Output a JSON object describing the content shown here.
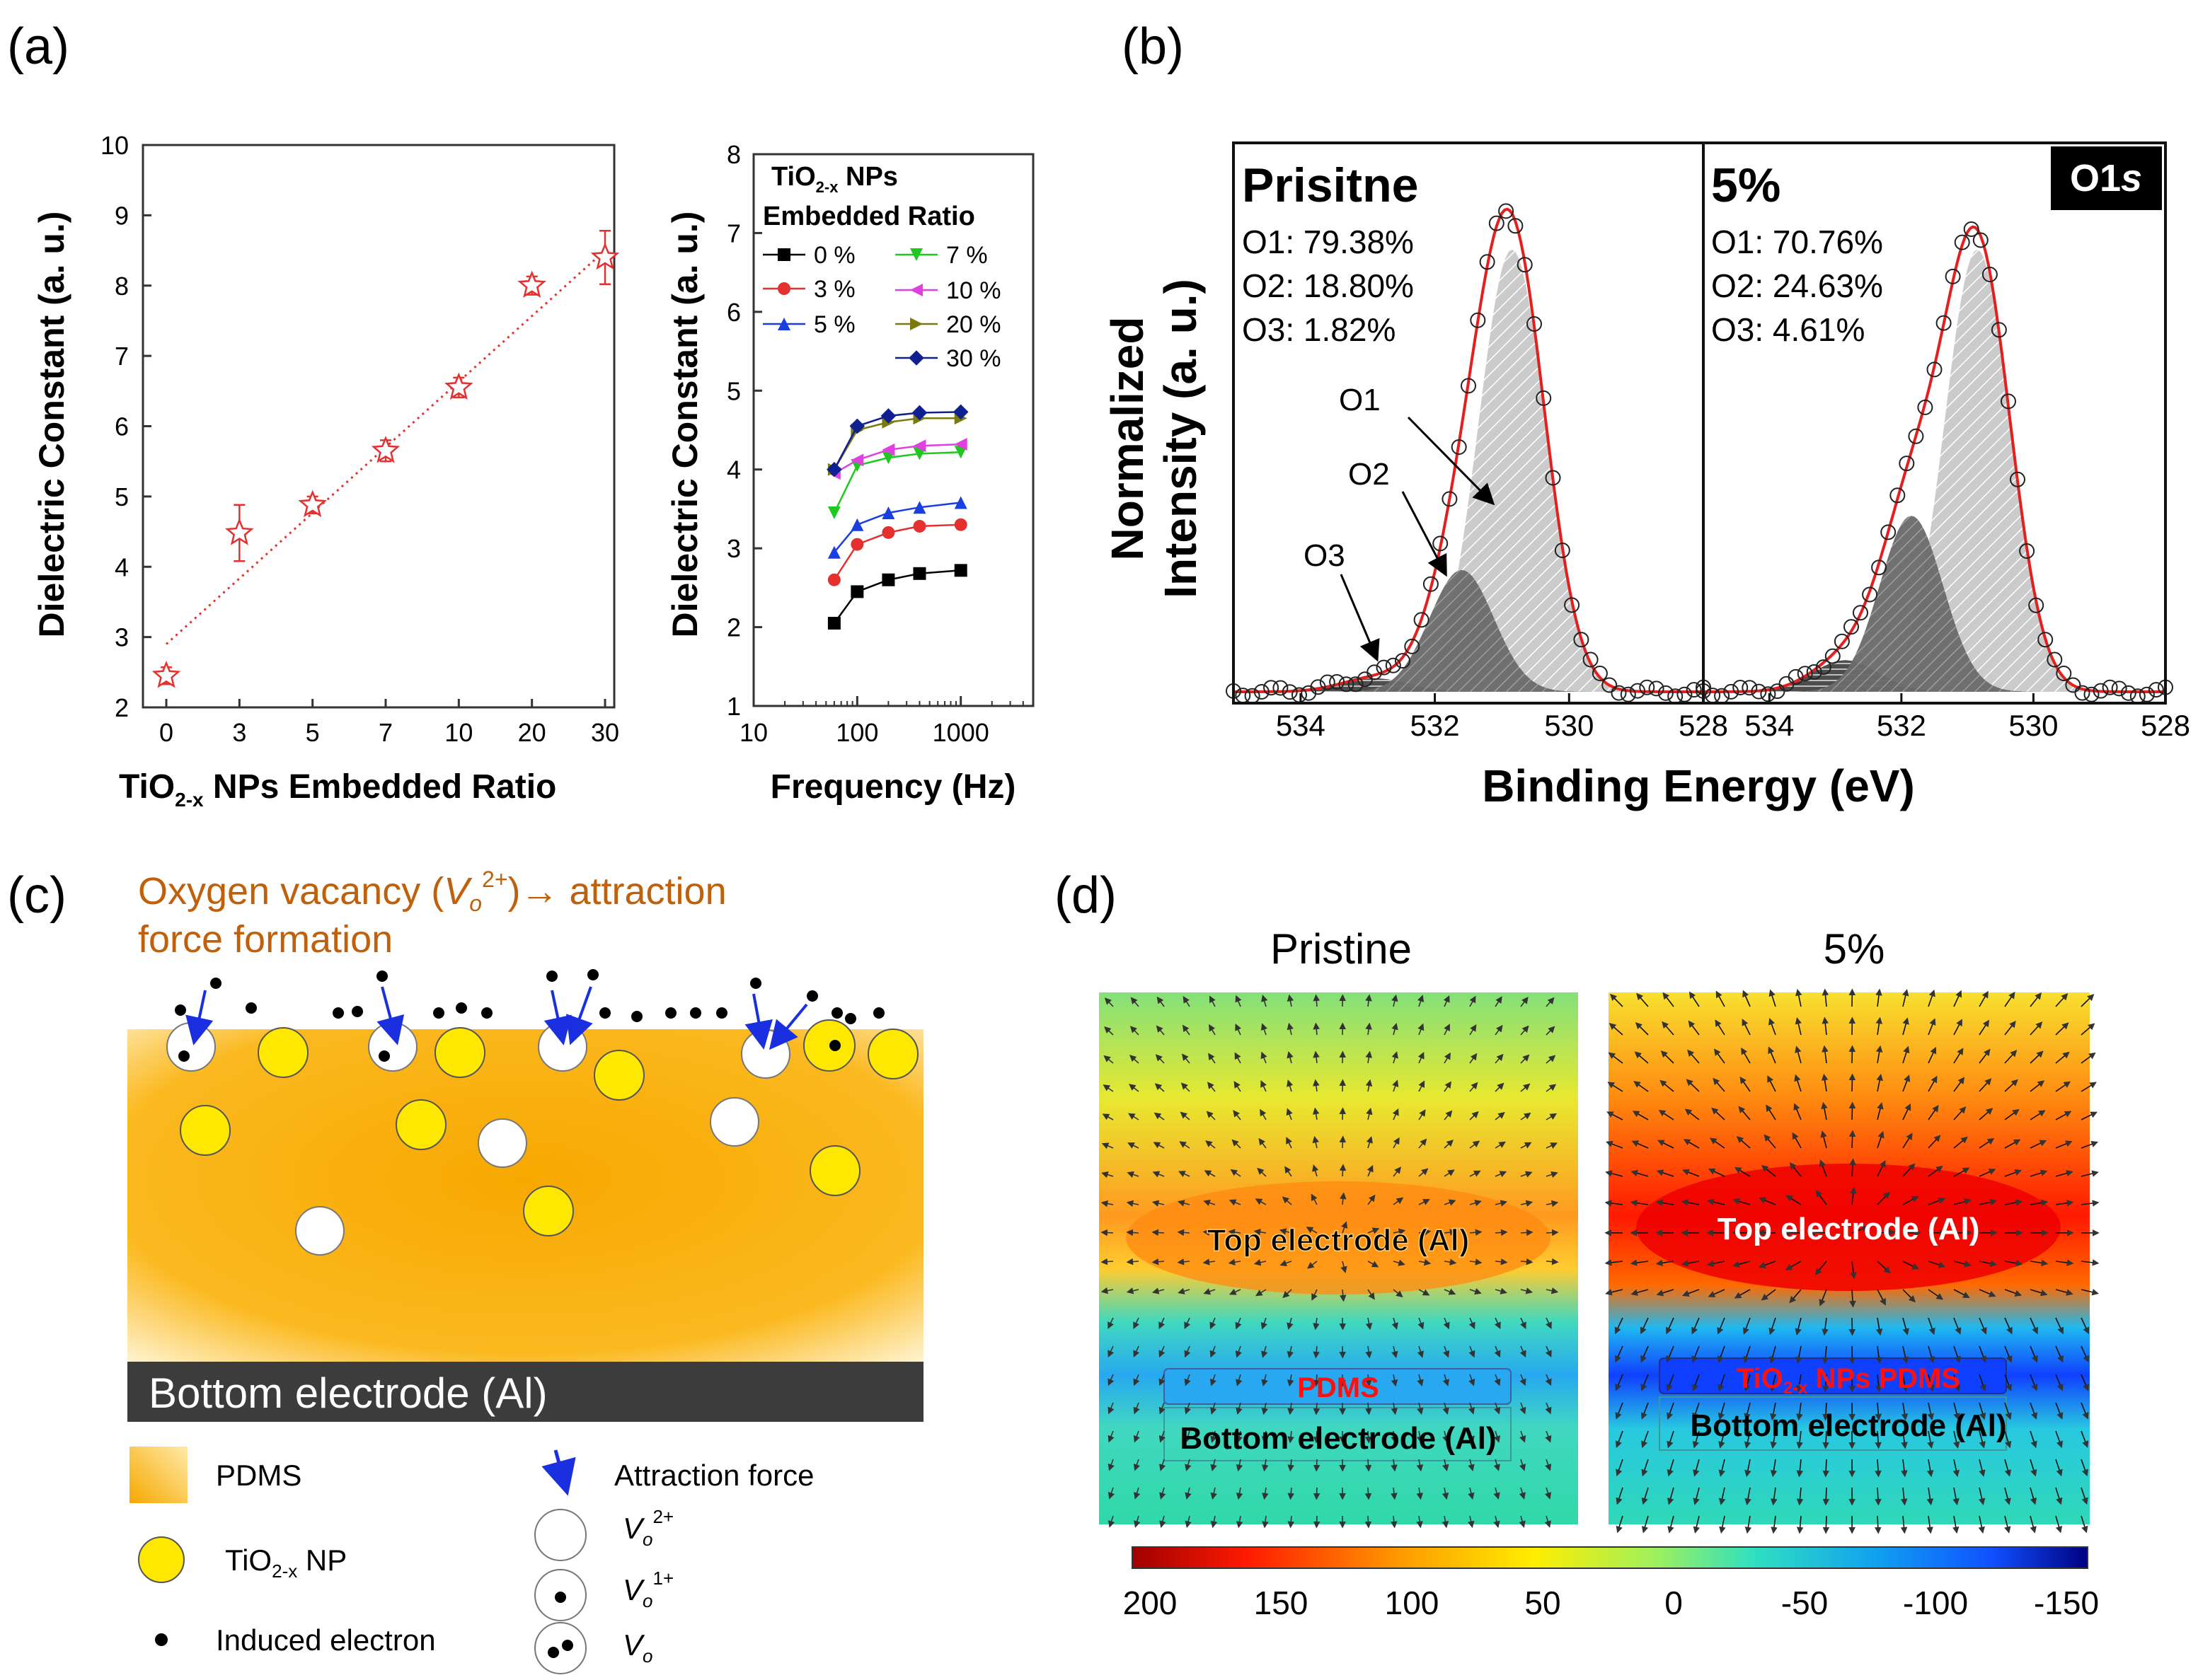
{
  "panels": {
    "a": "(a)",
    "b": "(b)",
    "c": "(c)",
    "d": "(d)"
  },
  "chart_data": [
    {
      "id": "a-left",
      "type": "scatter",
      "title": "",
      "xlabel": "TiO2-x NPs Embedded Ratio",
      "ylabel": "Dielectric Constant (a. u.)",
      "categories": [
        "0",
        "3",
        "5",
        "7",
        "10",
        "20",
        "30"
      ],
      "values": [
        2.45,
        4.48,
        4.88,
        5.65,
        6.55,
        8.0,
        8.4
      ],
      "errors": [
        0.12,
        0.4,
        0.12,
        0.15,
        0.14,
        0.13,
        0.38
      ],
      "ylim": [
        2,
        10
      ],
      "yticks": [
        "2",
        "3",
        "4",
        "5",
        "6",
        "7",
        "8",
        "9",
        "10"
      ],
      "fit": {
        "start": 2.9,
        "end": 8.5
      },
      "color": "#e53030"
    },
    {
      "id": "a-right",
      "type": "line",
      "xlabel": "Frequency (Hz)",
      "ylabel": "Dielectric Constant (a. u.)",
      "xscale": "log",
      "xlim": [
        10,
        5000
      ],
      "ylim": [
        1,
        8
      ],
      "xticks": [
        "10",
        "100",
        "1000"
      ],
      "yticks": [
        "1",
        "2",
        "3",
        "4",
        "5",
        "6",
        "7",
        "8"
      ],
      "x": [
        60,
        100,
        200,
        400,
        1000
      ],
      "legend_title_1": "TiO",
      "legend_title_sub": "2-x",
      "legend_title_2": " NPs",
      "legend_title_3": "Embedded Ratio",
      "series": [
        {
          "name": "0 %",
          "color": "#000000",
          "marker": "square",
          "values": [
            2.05,
            2.45,
            2.6,
            2.68,
            2.72
          ]
        },
        {
          "name": "3 %",
          "color": "#e53030",
          "marker": "circle",
          "values": [
            2.6,
            3.05,
            3.2,
            3.28,
            3.3
          ]
        },
        {
          "name": "5 %",
          "color": "#1a3fe0",
          "marker": "triangle-up",
          "values": [
            2.95,
            3.3,
            3.45,
            3.52,
            3.58
          ]
        },
        {
          "name": "7 %",
          "color": "#1ec81e",
          "marker": "triangle-down",
          "values": [
            3.45,
            4.05,
            4.15,
            4.2,
            4.22
          ]
        },
        {
          "name": "10 %",
          "color": "#e040e0",
          "marker": "triangle-left",
          "values": [
            3.95,
            4.12,
            4.25,
            4.3,
            4.32
          ]
        },
        {
          "name": "20 %",
          "color": "#7a7a10",
          "marker": "triangle-right",
          "values": [
            4.0,
            4.5,
            4.6,
            4.65,
            4.65
          ]
        },
        {
          "name": "30 %",
          "color": "#102090",
          "marker": "diamond",
          "values": [
            4.0,
            4.55,
            4.68,
            4.72,
            4.73
          ]
        }
      ]
    },
    {
      "id": "b",
      "type": "line",
      "xlabel": "Binding Energy (eV)",
      "ylabel_1": "Normalized",
      "ylabel_2": "Intensity (a. u.)",
      "tag_1": "O1",
      "tag_2": "s",
      "xlim": [
        535,
        528
      ],
      "xticks": [
        "534",
        "532",
        "530",
        "528"
      ],
      "subpanels": [
        {
          "title": "Prisitne",
          "o1": "O1: 79.38%",
          "o2": "O2: 18.80%",
          "o3": "O3: 1.82%",
          "peaks": [
            {
              "label": "O1",
              "center": 530.85,
              "height": 0.98
            },
            {
              "label": "O2",
              "center": 531.6,
              "height": 0.27
            },
            {
              "label": "O3",
              "center": 532.9,
              "height": 0.03
            }
          ]
        },
        {
          "title": "5%",
          "o1": "O1: 70.76%",
          "o2": "O2: 24.63%",
          "o3": "O3: 4.61%",
          "peaks": [
            {
              "label": "O1",
              "center": 530.85,
              "height": 0.98
            },
            {
              "label": "O2",
              "center": 531.85,
              "height": 0.39
            },
            {
              "label": "O3",
              "center": 532.85,
              "height": 0.07
            }
          ]
        }
      ],
      "peak_labels": [
        "O1",
        "O2",
        "O3"
      ]
    }
  ],
  "panel_c": {
    "heading_1": "Oxygen vacancy (",
    "heading_v": "V",
    "heading_o": "o",
    "heading_sup": "2+",
    "heading_2": ")→ attraction",
    "heading_3": "force formation",
    "electrode": "Bottom electrode (Al)",
    "legend": {
      "pdms": "PDMS",
      "np_1": "TiO",
      "np_sub": "2-x",
      "np_2": " NP",
      "electron": "Induced electron",
      "force": "Attraction force",
      "v": "V",
      "o": "o",
      "v2": "2+",
      "v1": "1+"
    }
  },
  "panel_d": {
    "left_title": "Pristine",
    "right_title": "5%",
    "top_electrode": "Top electrode (Al)",
    "bottom_electrode": "Bottom electrode (Al)",
    "pdms": "PDMS",
    "np_pdms_1": "TiO",
    "np_pdms_sub": "2-x",
    "np_pdms_2": " NPs PDMS",
    "colorbar_ticks": [
      "200",
      "150",
      "100",
      "50",
      "0",
      "-50",
      "-100",
      "-150"
    ]
  }
}
